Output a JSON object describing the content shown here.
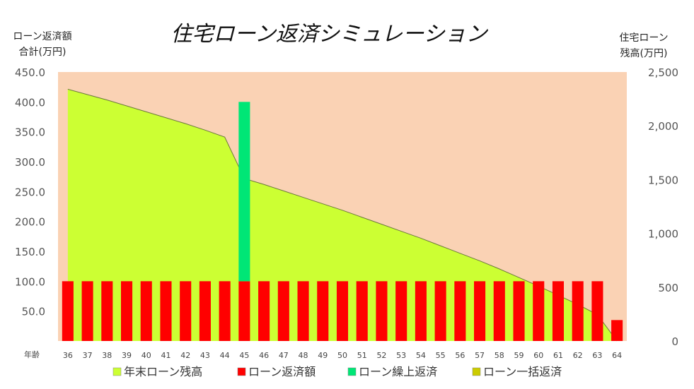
{
  "chart_data": {
    "type": "bar",
    "title": "住宅ローン返済シミュレーション",
    "y_left_label": [
      "ローン返済額",
      "合計(万円)"
    ],
    "y_right_label": [
      "住宅ローン",
      "残高(万円)"
    ],
    "x_axis_label": "年齢",
    "y_left_ticks": [
      "50.0",
      "100.0",
      "150.0",
      "200.0",
      "250.0",
      "300.0",
      "350.0",
      "400.0",
      "450.0"
    ],
    "y_right_ticks": [
      "0",
      "500",
      "1,000",
      "1,500",
      "2,000",
      "2,500"
    ],
    "ylim_left": [
      0,
      450
    ],
    "ylim_right": [
      0,
      2500
    ],
    "categories": [
      "36",
      "37",
      "38",
      "39",
      "40",
      "41",
      "42",
      "43",
      "44",
      "45",
      "46",
      "47",
      "48",
      "49",
      "50",
      "51",
      "52",
      "53",
      "54",
      "55",
      "56",
      "57",
      "58",
      "59",
      "60",
      "61",
      "62",
      "63",
      "64"
    ],
    "series": [
      {
        "name": "年末ローン残高",
        "type": "area",
        "axis": "right",
        "color": "#ccff33",
        "values": [
          2340,
          2290,
          2240,
          2185,
          2130,
          2075,
          2020,
          1960,
          1895,
          1510,
          1455,
          1395,
          1335,
          1275,
          1215,
          1150,
          1085,
          1020,
          955,
          885,
          815,
          745,
          670,
          590,
          510,
          425,
          340,
          245,
          0
        ]
      },
      {
        "name": "ローン返済額",
        "type": "bar",
        "axis": "left",
        "color": "#ff0000",
        "values": [
          100,
          100,
          100,
          100,
          100,
          100,
          100,
          100,
          100,
          100,
          100,
          100,
          100,
          100,
          100,
          100,
          100,
          100,
          100,
          100,
          100,
          100,
          100,
          100,
          100,
          100,
          100,
          100,
          35
        ]
      },
      {
        "name": "ローン繰上返済",
        "type": "bar",
        "axis": "left",
        "color": "#00e676",
        "values": [
          0,
          0,
          0,
          0,
          0,
          0,
          0,
          0,
          0,
          300,
          0,
          0,
          0,
          0,
          0,
          0,
          0,
          0,
          0,
          0,
          0,
          0,
          0,
          0,
          0,
          0,
          0,
          0,
          0
        ]
      },
      {
        "name": "ローン一括返済",
        "type": "bar",
        "axis": "left",
        "color": "#cccc00",
        "values": [
          0,
          0,
          0,
          0,
          0,
          0,
          0,
          0,
          0,
          0,
          0,
          0,
          0,
          0,
          0,
          0,
          0,
          0,
          0,
          0,
          0,
          0,
          0,
          0,
          0,
          0,
          0,
          0,
          0
        ]
      }
    ],
    "plot_background": "#fad2b4",
    "legend_position": "bottom"
  }
}
